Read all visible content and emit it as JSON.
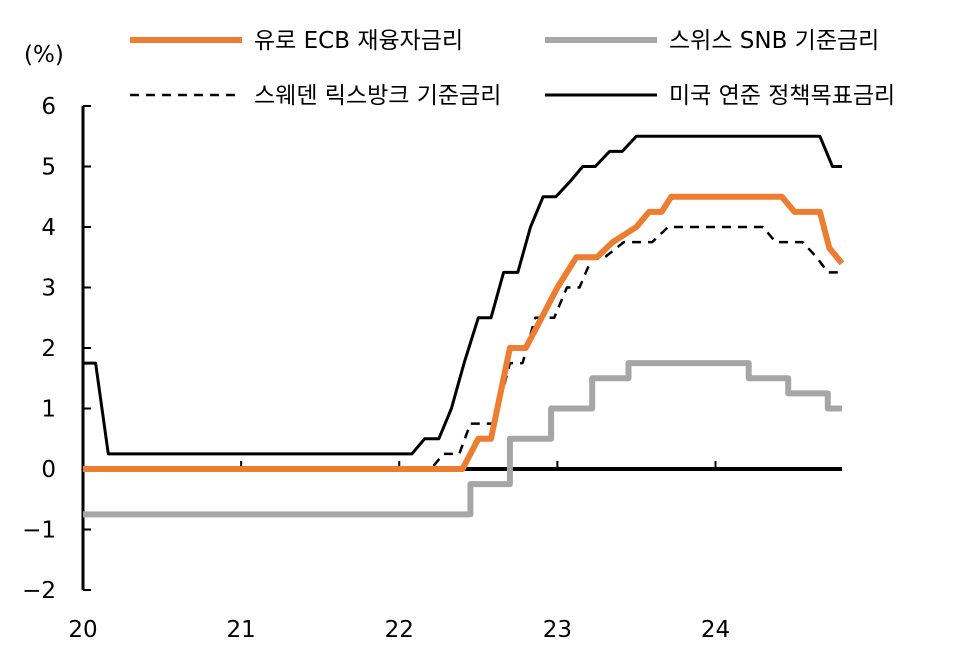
{
  "chart_data": {
    "type": "line",
    "unit_label": "(%)",
    "ylim": [
      -2,
      6
    ],
    "yticks": [
      -2,
      -1,
      0,
      1,
      2,
      3,
      4,
      5,
      6
    ],
    "ytick_labels": [
      "−2",
      "−1",
      "0",
      "1",
      "2",
      "3",
      "4",
      "5",
      "6"
    ],
    "xlim": [
      2020.0,
      2024.8
    ],
    "xticks": [
      2020,
      2021,
      2022,
      2023,
      2024
    ],
    "xtick_labels": [
      "20",
      "21",
      "22",
      "23",
      "24"
    ],
    "grid": false,
    "legend_position": "top",
    "series": [
      {
        "name": "유로 ECB 재융자금리",
        "color": "#ED7D31",
        "style": "solid",
        "points": [
          [
            2020.0,
            0
          ],
          [
            2022.4,
            0
          ],
          [
            2022.5,
            0.5
          ],
          [
            2022.58,
            0.5
          ],
          [
            2022.7,
            2.0
          ],
          [
            2022.8,
            2.0
          ],
          [
            2022.9,
            2.5
          ],
          [
            2023.0,
            3.0
          ],
          [
            2023.12,
            3.5
          ],
          [
            2023.25,
            3.5
          ],
          [
            2023.35,
            3.75
          ],
          [
            2023.5,
            4.0
          ],
          [
            2023.58,
            4.25
          ],
          [
            2023.66,
            4.25
          ],
          [
            2023.72,
            4.5
          ],
          [
            2024.42,
            4.5
          ],
          [
            2024.5,
            4.25
          ],
          [
            2024.66,
            4.25
          ],
          [
            2024.72,
            3.65
          ],
          [
            2024.8,
            3.4
          ]
        ]
      },
      {
        "name": "스위스 SNB 기준금리",
        "color": "#A6A6A6",
        "style": "solid",
        "points": [
          [
            2020.0,
            -0.75
          ],
          [
            2022.45,
            -0.75
          ],
          [
            2022.45,
            -0.25
          ],
          [
            2022.7,
            -0.25
          ],
          [
            2022.7,
            0.5
          ],
          [
            2022.96,
            0.5
          ],
          [
            2022.96,
            1.0
          ],
          [
            2023.22,
            1.0
          ],
          [
            2023.22,
            1.5
          ],
          [
            2023.45,
            1.5
          ],
          [
            2023.45,
            1.75
          ],
          [
            2024.21,
            1.75
          ],
          [
            2024.21,
            1.5
          ],
          [
            2024.46,
            1.5
          ],
          [
            2024.46,
            1.25
          ],
          [
            2024.71,
            1.25
          ],
          [
            2024.71,
            1.0
          ],
          [
            2024.8,
            1.0
          ]
        ]
      },
      {
        "name": "스웨덴 릭스방크 기준금리",
        "color": "#000000",
        "style": "dashed",
        "points": [
          [
            2020.0,
            0
          ],
          [
            2022.2,
            0
          ],
          [
            2022.28,
            0.25
          ],
          [
            2022.38,
            0.25
          ],
          [
            2022.45,
            0.75
          ],
          [
            2022.6,
            0.75
          ],
          [
            2022.7,
            1.75
          ],
          [
            2022.78,
            1.75
          ],
          [
            2022.86,
            2.5
          ],
          [
            2022.98,
            2.5
          ],
          [
            2023.06,
            3.0
          ],
          [
            2023.14,
            3.0
          ],
          [
            2023.22,
            3.5
          ],
          [
            2023.3,
            3.5
          ],
          [
            2023.42,
            3.75
          ],
          [
            2023.6,
            3.75
          ],
          [
            2023.7,
            4.0
          ],
          [
            2024.3,
            4.0
          ],
          [
            2024.38,
            3.75
          ],
          [
            2024.55,
            3.75
          ],
          [
            2024.64,
            3.5
          ],
          [
            2024.71,
            3.25
          ],
          [
            2024.8,
            3.25
          ]
        ]
      },
      {
        "name": "미국 연준 정책목표금리",
        "color": "#000000",
        "style": "solid",
        "points": [
          [
            2020.0,
            1.75
          ],
          [
            2020.08,
            1.75
          ],
          [
            2020.16,
            0.25
          ],
          [
            2022.08,
            0.25
          ],
          [
            2022.16,
            0.5
          ],
          [
            2022.25,
            0.5
          ],
          [
            2022.33,
            1.0
          ],
          [
            2022.41,
            1.75
          ],
          [
            2022.5,
            2.5
          ],
          [
            2022.58,
            2.5
          ],
          [
            2022.66,
            3.25
          ],
          [
            2022.75,
            3.25
          ],
          [
            2022.83,
            4.0
          ],
          [
            2022.91,
            4.5
          ],
          [
            2022.99,
            4.5
          ],
          [
            2023.08,
            4.75
          ],
          [
            2023.16,
            5.0
          ],
          [
            2023.24,
            5.0
          ],
          [
            2023.33,
            5.25
          ],
          [
            2023.41,
            5.25
          ],
          [
            2023.5,
            5.5
          ],
          [
            2024.66,
            5.5
          ],
          [
            2024.74,
            5.0
          ],
          [
            2024.8,
            5.0
          ]
        ]
      }
    ]
  },
  "legend": [
    {
      "label": "유로 ECB 재융자금리",
      "color": "#ED7D31",
      "style": "solid"
    },
    {
      "label": "스위스 SNB 기준금리",
      "color": "#A6A6A6",
      "style": "solid"
    },
    {
      "label": "스웨덴 릭스방크 기준금리",
      "color": "#000000",
      "style": "dashed"
    },
    {
      "label": "미국 연준 정책목표금리",
      "color": "#000000",
      "style": "solid"
    }
  ]
}
